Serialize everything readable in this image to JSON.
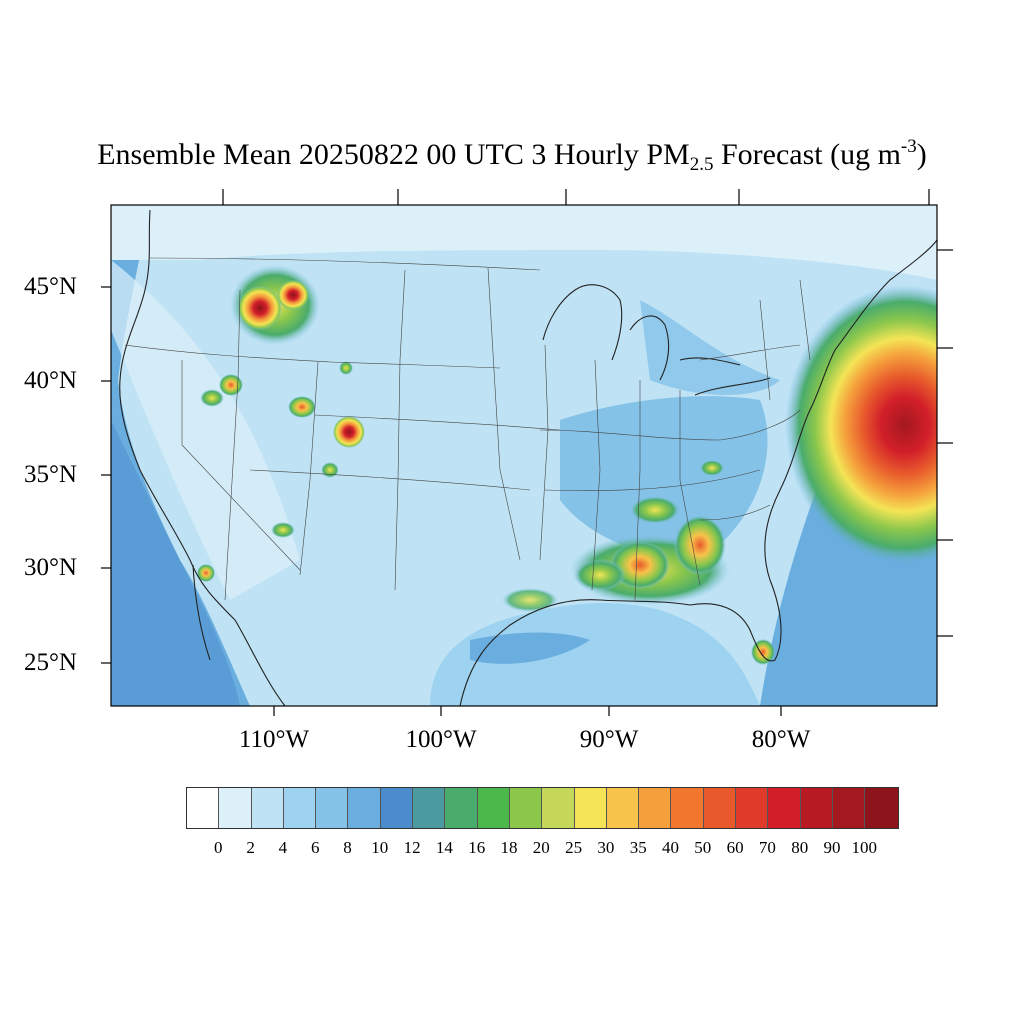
{
  "title": {
    "main": "Ensemble Mean 20250822 00 UTC 3 Hourly PM",
    "sub": "2.5",
    "tail": " Forecast (ug m",
    "sup": "-3",
    "close": ")"
  },
  "map": {
    "lat_labels": [
      "45°N",
      "40°N",
      "35°N",
      "30°N",
      "25°N"
    ],
    "lon_labels": [
      "110°W",
      "100°W",
      "90°W",
      "80°W"
    ],
    "background_color": "#bfe3f5"
  },
  "colorbar": {
    "labels": [
      "0",
      "2",
      "4",
      "6",
      "8",
      "10",
      "12",
      "14",
      "16",
      "18",
      "20",
      "25",
      "30",
      "35",
      "40",
      "50",
      "60",
      "70",
      "80",
      "90",
      "100"
    ],
    "colors": [
      "#ffffff",
      "#dcf0fa",
      "#bfe3f5",
      "#9dd3f0",
      "#84c2e8",
      "#6aaee0",
      "#4a8ccc",
      "#4a9aa0",
      "#4aac6c",
      "#4cb74a",
      "#8cc74c",
      "#c6d85a",
      "#f4e456",
      "#f7c34a",
      "#f5a03c",
      "#f2772e",
      "#e85a2c",
      "#e03a2a",
      "#d21f2a",
      "#b81a24",
      "#a4181f",
      "#8c141a"
    ]
  }
}
